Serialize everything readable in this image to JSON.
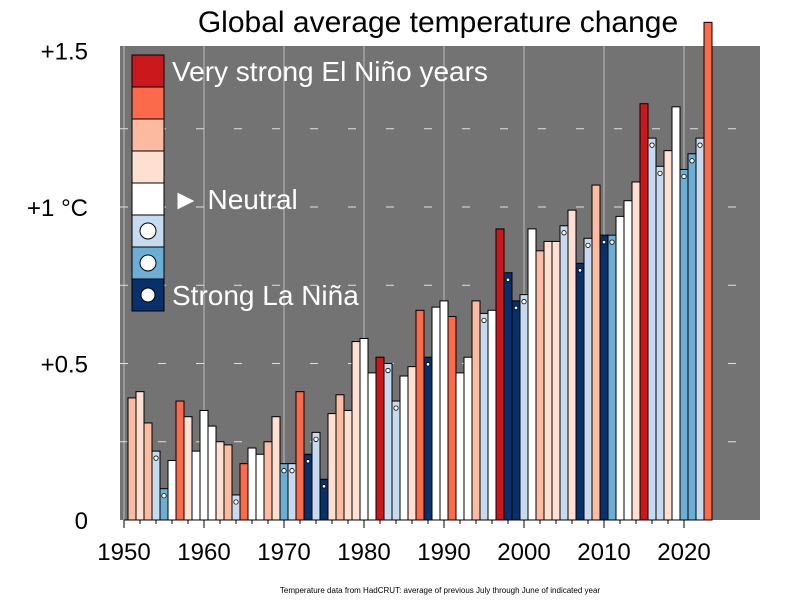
{
  "chart_data": {
    "type": "bar",
    "title": "Global average temperature change",
    "footnote": "Temperature data from HadCRUT: average of previous July through June of indicated year",
    "xlabel": "",
    "ylabel": "",
    "xlim": [
      1950,
      2029
    ],
    "ylim": [
      0,
      1.52
    ],
    "grid": true,
    "legend_position": "top-left",
    "y_ticks": [
      {
        "value": 0,
        "label": "0"
      },
      {
        "value": 0.5,
        "label": "+0.5"
      },
      {
        "value": 1.0,
        "label": "+1 °C"
      },
      {
        "value": 1.5,
        "label": "+1.5"
      }
    ],
    "x_ticks": [
      1950,
      1960,
      1970,
      1980,
      1990,
      2000,
      2010,
      2020
    ],
    "x_tick_labels": [
      "1950",
      "1960",
      "1970",
      "1980",
      "1990",
      "2000",
      "2010",
      "2020"
    ],
    "categories": [
      "very_strong_el_nino",
      "strong_el_nino",
      "moderate_el_nino",
      "weak_el_nino",
      "neutral",
      "weak_la_nina",
      "moderate_la_nina",
      "strong_la_nina"
    ],
    "colors": {
      "very_strong_el_nino": "#cb181d",
      "strong_el_nino": "#fb6a4a",
      "moderate_el_nino": "#fcbba1",
      "weak_el_nino": "#fee0d2",
      "neutral": "#ffffff",
      "weak_la_nina": "#c6dbef",
      "moderate_la_nina": "#6baed6",
      "strong_la_nina": "#08306b",
      "background": "#737373",
      "gridline": "#bdbdbd"
    },
    "legend": [
      {
        "category": "very_strong_el_nino",
        "label": "Very strong El Niño years"
      },
      {
        "category": "strong_el_nino",
        "label": ""
      },
      {
        "category": "moderate_el_nino",
        "label": ""
      },
      {
        "category": "weak_el_nino",
        "label": ""
      },
      {
        "category": "neutral",
        "label": "► Neutral"
      },
      {
        "category": "weak_la_nina",
        "label": ""
      },
      {
        "category": "moderate_la_nina",
        "label": ""
      },
      {
        "category": "strong_la_nina",
        "label": "Strong La Niña"
      }
    ],
    "series": [
      {
        "year": 1951,
        "value": 0.39,
        "category": "moderate_el_nino"
      },
      {
        "year": 1952,
        "value": 0.41,
        "category": "weak_el_nino"
      },
      {
        "year": 1953,
        "value": 0.31,
        "category": "moderate_el_nino"
      },
      {
        "year": 1954,
        "value": 0.22,
        "category": "weak_la_nina"
      },
      {
        "year": 1955,
        "value": 0.1,
        "category": "moderate_la_nina"
      },
      {
        "year": 1956,
        "value": 0.19,
        "category": "neutral"
      },
      {
        "year": 1957,
        "value": 0.38,
        "category": "strong_el_nino"
      },
      {
        "year": 1958,
        "value": 0.33,
        "category": "weak_el_nino"
      },
      {
        "year": 1959,
        "value": 0.22,
        "category": "neutral"
      },
      {
        "year": 1960,
        "value": 0.35,
        "category": "neutral"
      },
      {
        "year": 1961,
        "value": 0.3,
        "category": "neutral"
      },
      {
        "year": 1962,
        "value": 0.25,
        "category": "weak_el_nino"
      },
      {
        "year": 1963,
        "value": 0.24,
        "category": "moderate_el_nino"
      },
      {
        "year": 1964,
        "value": 0.08,
        "category": "weak_la_nina"
      },
      {
        "year": 1965,
        "value": 0.18,
        "category": "strong_el_nino"
      },
      {
        "year": 1966,
        "value": 0.23,
        "category": "neutral"
      },
      {
        "year": 1967,
        "value": 0.21,
        "category": "neutral"
      },
      {
        "year": 1968,
        "value": 0.25,
        "category": "moderate_el_nino"
      },
      {
        "year": 1969,
        "value": 0.33,
        "category": "weak_el_nino"
      },
      {
        "year": 1970,
        "value": 0.18,
        "category": "moderate_la_nina"
      },
      {
        "year": 1971,
        "value": 0.18,
        "category": "weak_la_nina"
      },
      {
        "year": 1972,
        "value": 0.41,
        "category": "strong_el_nino"
      },
      {
        "year": 1973,
        "value": 0.21,
        "category": "strong_la_nina"
      },
      {
        "year": 1974,
        "value": 0.28,
        "category": "weak_la_nina"
      },
      {
        "year": 1975,
        "value": 0.13,
        "category": "strong_la_nina"
      },
      {
        "year": 1976,
        "value": 0.34,
        "category": "weak_el_nino"
      },
      {
        "year": 1977,
        "value": 0.4,
        "category": "moderate_el_nino"
      },
      {
        "year": 1978,
        "value": 0.35,
        "category": "weak_el_nino"
      },
      {
        "year": 1979,
        "value": 0.57,
        "category": "weak_el_nino"
      },
      {
        "year": 1980,
        "value": 0.58,
        "category": "neutral"
      },
      {
        "year": 1981,
        "value": 0.47,
        "category": "neutral"
      },
      {
        "year": 1982,
        "value": 0.52,
        "category": "very_strong_el_nino"
      },
      {
        "year": 1983,
        "value": 0.5,
        "category": "weak_la_nina"
      },
      {
        "year": 1984,
        "value": 0.38,
        "category": "weak_la_nina"
      },
      {
        "year": 1985,
        "value": 0.46,
        "category": "neutral"
      },
      {
        "year": 1986,
        "value": 0.49,
        "category": "weak_el_nino"
      },
      {
        "year": 1987,
        "value": 0.67,
        "category": "strong_el_nino"
      },
      {
        "year": 1988,
        "value": 0.52,
        "category": "strong_la_nina"
      },
      {
        "year": 1989,
        "value": 0.68,
        "category": "neutral"
      },
      {
        "year": 1990,
        "value": 0.7,
        "category": "neutral"
      },
      {
        "year": 1991,
        "value": 0.65,
        "category": "strong_el_nino"
      },
      {
        "year": 1992,
        "value": 0.47,
        "category": "neutral"
      },
      {
        "year": 1993,
        "value": 0.52,
        "category": "neutral"
      },
      {
        "year": 1994,
        "value": 0.7,
        "category": "moderate_el_nino"
      },
      {
        "year": 1995,
        "value": 0.66,
        "category": "weak_la_nina"
      },
      {
        "year": 1996,
        "value": 0.67,
        "category": "neutral"
      },
      {
        "year": 1997,
        "value": 0.93,
        "category": "very_strong_el_nino"
      },
      {
        "year": 1998,
        "value": 0.79,
        "category": "strong_la_nina"
      },
      {
        "year": 1999,
        "value": 0.7,
        "category": "strong_la_nina"
      },
      {
        "year": 2000,
        "value": 0.72,
        "category": "weak_la_nina"
      },
      {
        "year": 2001,
        "value": 0.93,
        "category": "neutral"
      },
      {
        "year": 2002,
        "value": 0.86,
        "category": "moderate_el_nino"
      },
      {
        "year": 2003,
        "value": 0.89,
        "category": "weak_el_nino"
      },
      {
        "year": 2004,
        "value": 0.89,
        "category": "weak_el_nino"
      },
      {
        "year": 2005,
        "value": 0.94,
        "category": "weak_la_nina"
      },
      {
        "year": 2006,
        "value": 0.99,
        "category": "weak_el_nino"
      },
      {
        "year": 2007,
        "value": 0.82,
        "category": "strong_la_nina"
      },
      {
        "year": 2008,
        "value": 0.9,
        "category": "weak_la_nina"
      },
      {
        "year": 2009,
        "value": 1.07,
        "category": "moderate_el_nino"
      },
      {
        "year": 2010,
        "value": 0.91,
        "category": "strong_la_nina"
      },
      {
        "year": 2011,
        "value": 0.91,
        "category": "moderate_la_nina"
      },
      {
        "year": 2012,
        "value": 0.97,
        "category": "neutral"
      },
      {
        "year": 2013,
        "value": 1.02,
        "category": "neutral"
      },
      {
        "year": 2014,
        "value": 1.08,
        "category": "weak_el_nino"
      },
      {
        "year": 2015,
        "value": 1.33,
        "category": "very_strong_el_nino"
      },
      {
        "year": 2016,
        "value": 1.22,
        "category": "weak_la_nina"
      },
      {
        "year": 2017,
        "value": 1.13,
        "category": "weak_la_nina"
      },
      {
        "year": 2018,
        "value": 1.18,
        "category": "weak_el_nino"
      },
      {
        "year": 2019,
        "value": 1.32,
        "category": "neutral"
      },
      {
        "year": 2020,
        "value": 1.12,
        "category": "moderate_la_nina"
      },
      {
        "year": 2021,
        "value": 1.17,
        "category": "moderate_la_nina"
      },
      {
        "year": 2022,
        "value": 1.22,
        "category": "weak_la_nina"
      },
      {
        "year": 2023,
        "value": 1.59,
        "category": "strong_el_nino"
      }
    ]
  }
}
